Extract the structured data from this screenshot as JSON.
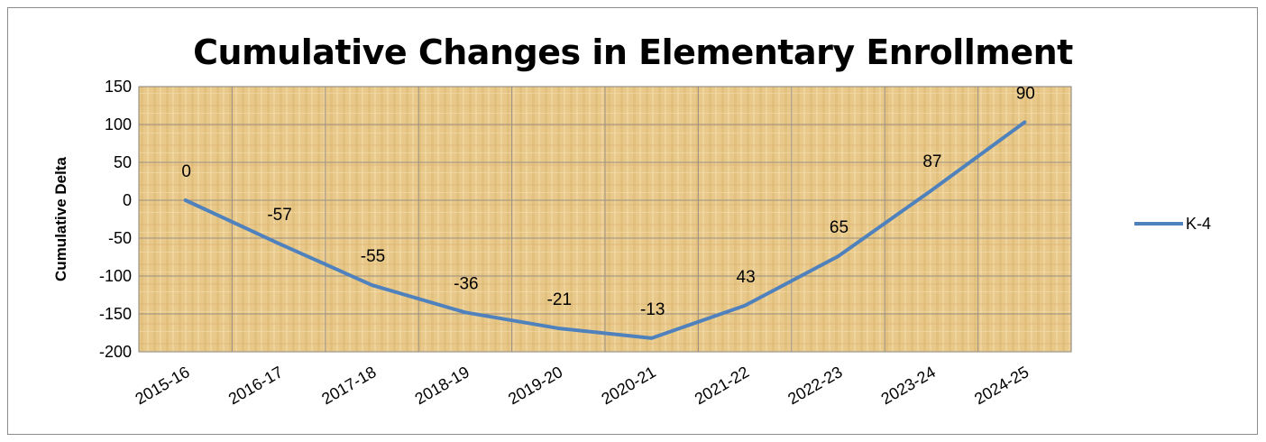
{
  "chart_data": {
    "type": "line",
    "title": "Cumulative Changes in Elementary Enrollment",
    "xlabel": "",
    "ylabel": "Cumulative Delta",
    "categories": [
      "2015-16",
      "2016-17",
      "2017-18",
      "2018-19",
      "2019-20",
      "2020-21",
      "2021-22",
      "2022-23",
      "2023-24",
      "2024-25"
    ],
    "ylim": [
      -200,
      150
    ],
    "yticks": [
      150,
      100,
      50,
      0,
      -50,
      -100,
      -150,
      -200
    ],
    "grid": true,
    "legend_position": "right",
    "series": [
      {
        "name": "K-4",
        "color": "#4f81bd",
        "values": [
          0,
          -57,
          -112,
          -148,
          -169,
          -182,
          -139,
          -74,
          13,
          103
        ],
        "data_labels": [
          "0",
          "-57",
          "-55",
          "-36",
          "-21",
          "-13",
          "43",
          "65",
          "87",
          "90"
        ]
      }
    ],
    "plot_background": "#e9c98a",
    "grid_color": "#9a8f83"
  }
}
